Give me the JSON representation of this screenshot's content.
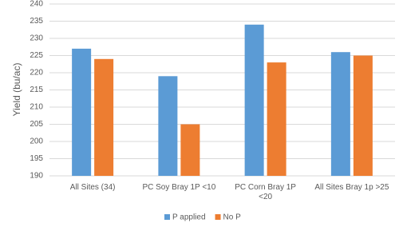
{
  "chart_data": {
    "type": "bar",
    "y_label": "Yield (bu/ac)",
    "categories": [
      "All Sites (34)",
      "PC Soy Bray 1P <10",
      "PC Corn Bray 1P <20",
      "All Sites Bray 1p >25"
    ],
    "series": [
      {
        "name": "P applied",
        "color": "#5b9bd5",
        "values": [
          227,
          219,
          234,
          226
        ]
      },
      {
        "name": "No P",
        "color": "#ed7d31",
        "values": [
          224,
          205,
          223,
          225
        ]
      }
    ],
    "ylim": [
      190,
      240
    ],
    "yticks": [
      190,
      195,
      200,
      205,
      210,
      215,
      220,
      225,
      230,
      235,
      240
    ],
    "grid": true,
    "legend": "bottom"
  }
}
